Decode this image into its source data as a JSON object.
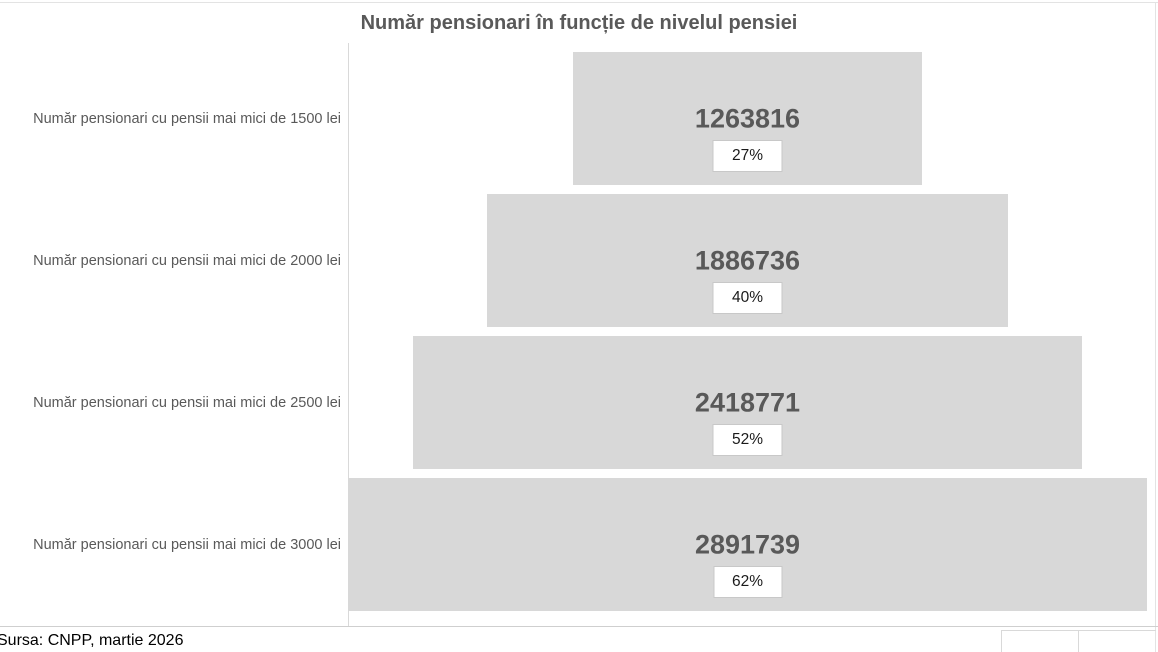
{
  "chart_data": {
    "type": "bar",
    "orientation": "horizontal",
    "style": "centered-funnel",
    "title": "Număr pensionari în funcție de nivelul pensiei",
    "categories": [
      "Număr pensionari cu pensii mai mici de 1500 lei",
      "Număr pensionari cu pensii mai mici de 2000 lei",
      "Număr pensionari cu pensii mai mici de 2500 lei",
      "Număr pensionari cu pensii mai mici de 3000 lei"
    ],
    "values": [
      1263816,
      1886736,
      2418771,
      2891739
    ],
    "value_labels": [
      "1263816",
      "1886736",
      "2418771",
      "2891739"
    ],
    "percent_labels": [
      "27%",
      "40%",
      "52%",
      "62%"
    ],
    "max_value": 2891739,
    "legend": "none",
    "gridlines": "off"
  },
  "footer": {
    "source_note": "Sursa: CNPP, martie 2026"
  },
  "colors": {
    "bar_fill": "#d8d8d8",
    "title_text": "#595959",
    "category_text": "#595959",
    "value_text": "#595959",
    "percent_text": "#1a1a1a",
    "percent_box_bg": "#ffffff",
    "percent_box_border": "#c8c8c8",
    "chart_border": "#e3e3e3",
    "axis_line": "#d9d9d9",
    "source_text": "#000000"
  }
}
